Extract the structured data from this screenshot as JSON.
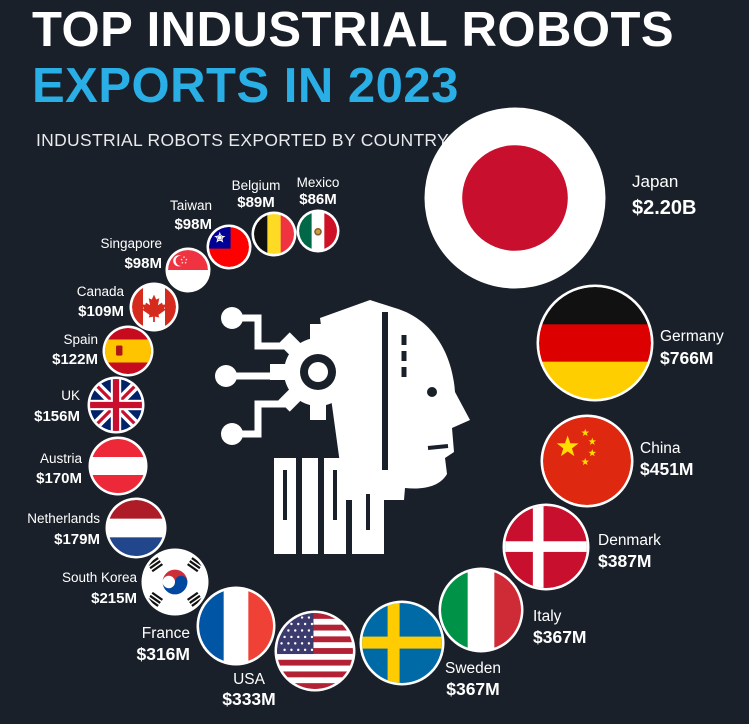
{
  "header": {
    "title_line1": "TOP INDUSTRIAL ROBOTS",
    "title_line2": "EXPORTS IN 2023",
    "subtitle": "INDUSTRIAL ROBOTS EXPORTED BY COUNTRY"
  },
  "colors": {
    "background": "#1a2029",
    "title": "#ffffff",
    "accent": "#29aee6",
    "bubble_border": "#ffffff"
  },
  "chart_data": {
    "type": "bubble",
    "title": "TOP INDUSTRIAL ROBOTS EXPORTS IN 2023",
    "subtitle": "INDUSTRIAL ROBOTS EXPORTED BY COUNTRY",
    "unit": "USD",
    "categories": [
      "Japan",
      "Germany",
      "China",
      "Denmark",
      "Italy",
      "Sweden",
      "USA",
      "France",
      "South Korea",
      "Netherlands",
      "Austria",
      "UK",
      "Spain",
      "Canada",
      "Singapore",
      "Taiwan",
      "Belgium",
      "Mexico"
    ],
    "values": [
      2200,
      766,
      451,
      387,
      367,
      367,
      333,
      316,
      215,
      179,
      170,
      156,
      122,
      109,
      98,
      98,
      89,
      86
    ],
    "value_labels": [
      "$2.20B",
      "$766M",
      "$451M",
      "$387M",
      "$367M",
      "$367M",
      "$333M",
      "$316M",
      "$215M",
      "$179M",
      "$170M",
      "$156M",
      "$122M",
      "$109M",
      "$98M",
      "$98M",
      "$89M",
      "$86M"
    ],
    "flags": [
      "japan-flag",
      "germany-flag",
      "china-flag",
      "denmark-flag",
      "italy-flag",
      "sweden-flag",
      "usa-flag",
      "france-flag",
      "south-korea-flag",
      "netherlands-flag",
      "austria-flag",
      "uk-flag",
      "spain-flag",
      "canada-flag",
      "singapore-flag",
      "taiwan-flag",
      "belgium-flag",
      "mexico-flag"
    ]
  },
  "center_icon": "robot-head-gear-icon"
}
